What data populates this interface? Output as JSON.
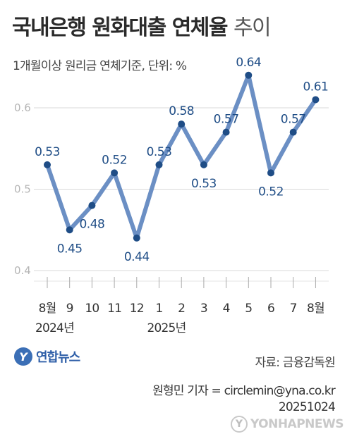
{
  "title_bold": "국내은행 원화대출 연체율",
  "title_light": "추이",
  "subtitle": "1개월이상 원리금 연체기준, 단위: %",
  "chart_data": {
    "type": "line",
    "title": "국내은행 원화대출 연체율 추이",
    "categories": [
      "8월",
      "9",
      "10",
      "11",
      "12",
      "1",
      "2",
      "3",
      "4",
      "5",
      "6",
      "7",
      "8월"
    ],
    "year_labels": [
      {
        "text": "2024년",
        "index": 0
      },
      {
        "text": "2025년",
        "index": 5
      }
    ],
    "values": [
      0.53,
      0.45,
      0.48,
      0.52,
      0.44,
      0.53,
      0.58,
      0.53,
      0.57,
      0.64,
      0.52,
      0.57,
      0.61
    ],
    "value_labels": [
      "0.53",
      "0.45",
      "0.48",
      "0.52",
      "0.44",
      "0.53",
      "0.58",
      "0.53",
      "0.57",
      "0.64",
      "0.52",
      "0.57",
      "0.61"
    ],
    "label_side": [
      "up",
      "down",
      "down",
      "up",
      "down",
      "up",
      "up",
      "down",
      "up",
      "up",
      "down",
      "up",
      "up"
    ],
    "y_ticks": [
      0.4,
      0.5,
      0.6
    ],
    "y_tick_labels": [
      "0.4",
      "0.5",
      "0.6"
    ],
    "ylim": [
      0.4,
      0.6
    ],
    "grid": true,
    "line_color": "#6b8fc4",
    "marker_color": "#1f4d86",
    "label_color": "#1f4d86"
  },
  "logo_text": "연합뉴스",
  "logo_mark": "Y",
  "source": "자료: 금융감독원",
  "credit_line1": "원형민 기자 = circlemin@yna.co.kr",
  "credit_line2": "20251024",
  "watermark_text": "YONHAPNEWS",
  "watermark_mark": "Y"
}
